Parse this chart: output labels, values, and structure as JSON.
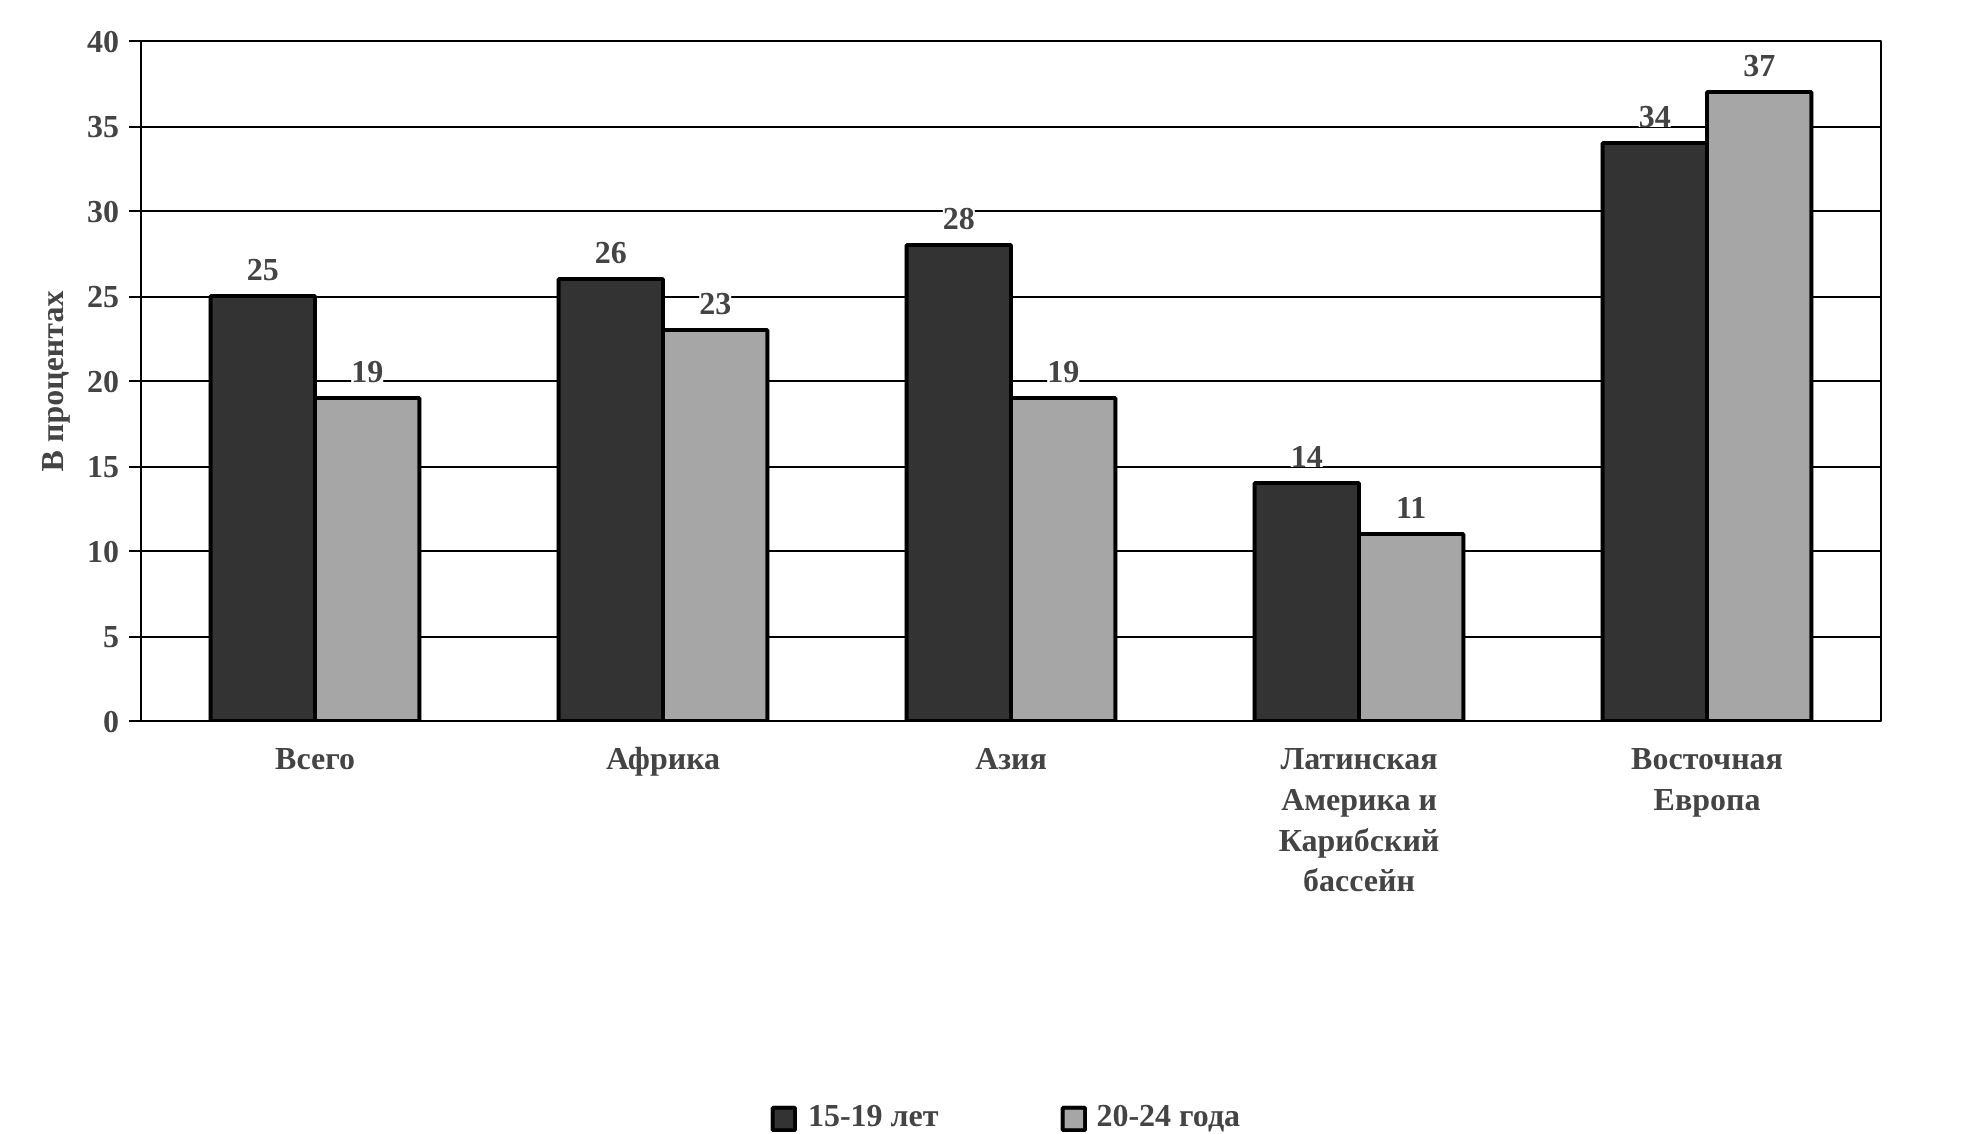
{
  "chart_data": {
    "type": "bar",
    "ylabel": "В процентах",
    "categories": [
      "Всего",
      "Африка",
      "Азия",
      "Латинская Америка и Карибский бассейн",
      "Восточная Европа"
    ],
    "series": [
      {
        "name": "15-19 лет",
        "color": "#333333",
        "values": [
          25,
          26,
          28,
          14,
          34
        ]
      },
      {
        "name": "20-24 года",
        "color": "#a6a6a6",
        "values": [
          19,
          23,
          19,
          11,
          37
        ]
      }
    ],
    "ylim": [
      0,
      40
    ],
    "yticks": [
      0,
      5,
      10,
      15,
      20,
      25,
      30,
      35,
      40
    ],
    "grid": "y",
    "legend": "bottom",
    "data_labels": true
  }
}
